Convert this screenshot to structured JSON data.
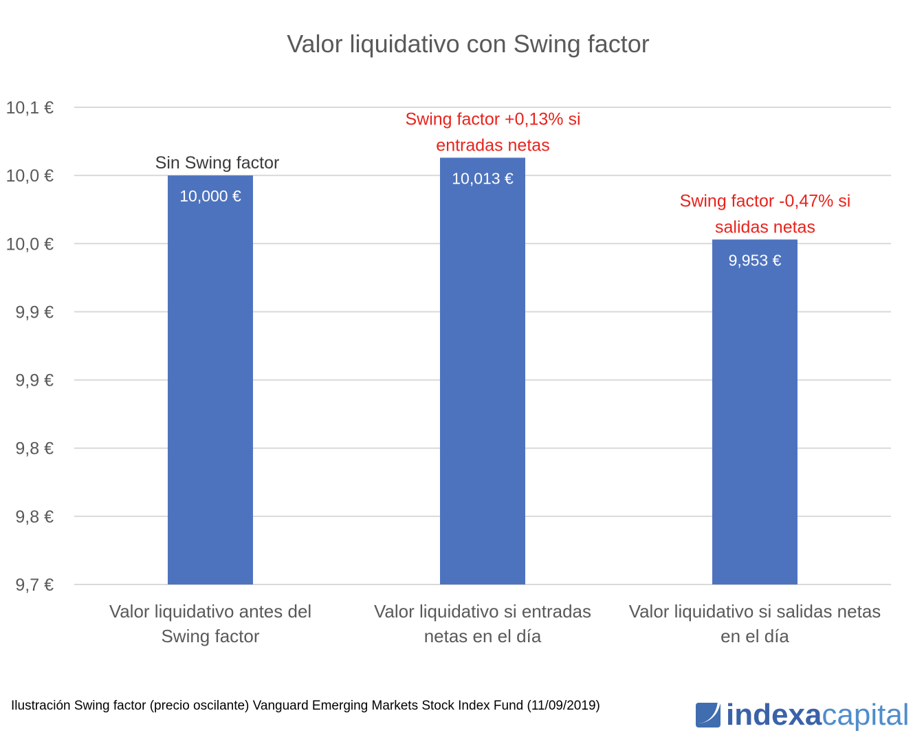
{
  "chart_data": {
    "type": "bar",
    "title": "Valor liquidativo con Swing factor",
    "categories": [
      [
        "Valor liquidativo antes del",
        "Swing factor"
      ],
      [
        "Valor liquidativo si entradas",
        "netas en el día"
      ],
      [
        "Valor liquidativo si salidas netas",
        "en el día"
      ]
    ],
    "values": [
      10.0,
      10.013,
      9.953
    ],
    "data_labels": [
      "10,000 €",
      "10,013 €",
      "9,953 €"
    ],
    "annotations": [
      {
        "lines": [
          "Sin Swing factor"
        ],
        "color": "#3a3a3a"
      },
      {
        "lines": [
          "Swing factor +0,13% si",
          "entradas netas"
        ],
        "color": "#e8231c"
      },
      {
        "lines": [
          "Swing factor -0,47% si",
          "salidas netas"
        ],
        "color": "#e8231c"
      }
    ],
    "ylim": [
      9.7,
      10.05
    ],
    "yticks": [
      9.7,
      9.75,
      9.8,
      9.85,
      9.9,
      9.95,
      10.0,
      10.05
    ],
    "ytick_labels": [
      "9,7 €",
      "9,8 €",
      "9,8 €",
      "9,9 €",
      "9,9 €",
      "10,0 €",
      "10,0 €",
      "10,1 €"
    ],
    "grid": true,
    "bar_color": "#4e73be",
    "xlabel": "",
    "ylabel": ""
  },
  "footnote": "Ilustración Swing factor (precio oscilante) Vanguard Emerging Markets Stock Index Fund (11/09/2019)",
  "logo": {
    "part1": "indexa",
    "part2": "capital"
  }
}
